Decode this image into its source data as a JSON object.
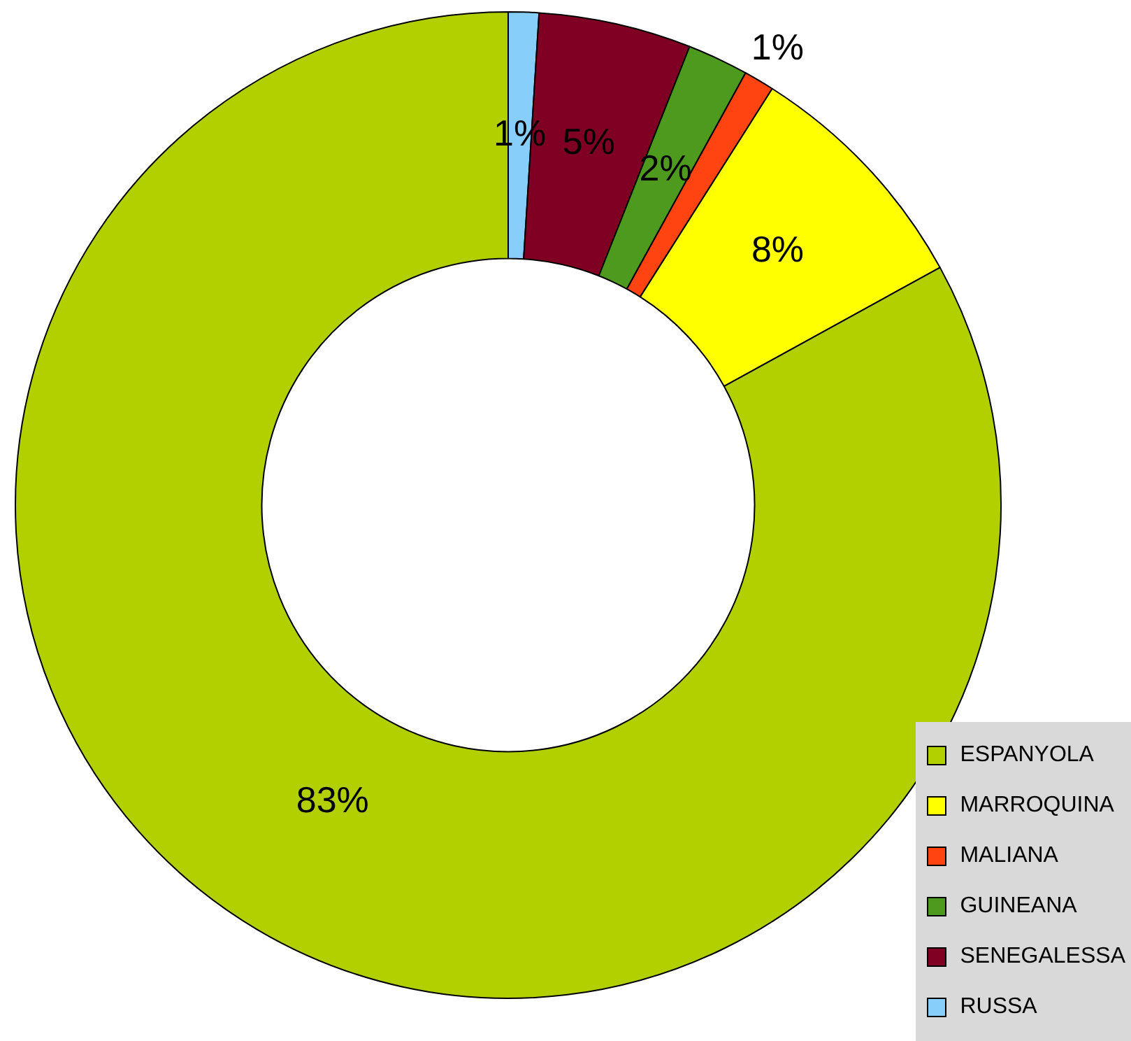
{
  "chart_data": {
    "type": "donut",
    "categories": [
      "ESPANYOLA",
      "MARROQUINA",
      "MALIANA",
      "GUINEANA",
      "SENEGALESSA",
      "RUSSA"
    ],
    "values": [
      83,
      8,
      1,
      2,
      5,
      1
    ],
    "value_labels": [
      "83%",
      "8%",
      "1%",
      "2%",
      "5%",
      "1%"
    ],
    "colors": [
      "#b2d000",
      "#ffff00",
      "#ff4411",
      "#4d9a1f",
      "#7f0022",
      "#87cefa"
    ],
    "legend": "bottom right"
  }
}
